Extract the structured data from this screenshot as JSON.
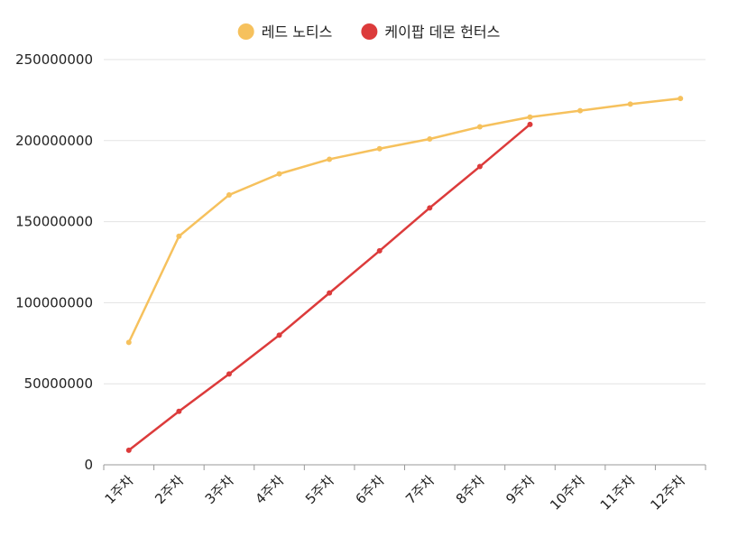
{
  "chart_data": {
    "type": "line",
    "title": "",
    "xlabel": "",
    "ylabel": "",
    "categories": [
      "1주차",
      "2주차",
      "3주차",
      "4주차",
      "5주차",
      "6주차",
      "7주차",
      "8주차",
      "9주차",
      "10주차",
      "11주차",
      "12주차"
    ],
    "y_ticks": [
      "0",
      "50000000",
      "100000000",
      "150000000",
      "200000000",
      "250000000"
    ],
    "ylim": [
      0,
      250000000
    ],
    "grid": true,
    "legend_position": "top-center",
    "series": [
      {
        "name": "레드 노티스",
        "color": "#f6c15d",
        "values": [
          75500000,
          141000000,
          166500000,
          179500000,
          188500000,
          195000000,
          201000000,
          208500000,
          214500000,
          218500000,
          222500000,
          226000000
        ]
      },
      {
        "name": "케이팝 데몬 헌터스",
        "color": "#dc3b3b",
        "values": [
          9000000,
          33000000,
          56000000,
          80000000,
          106000000,
          132000000,
          158500000,
          184000000,
          210000000,
          null,
          null,
          null
        ]
      }
    ]
  }
}
